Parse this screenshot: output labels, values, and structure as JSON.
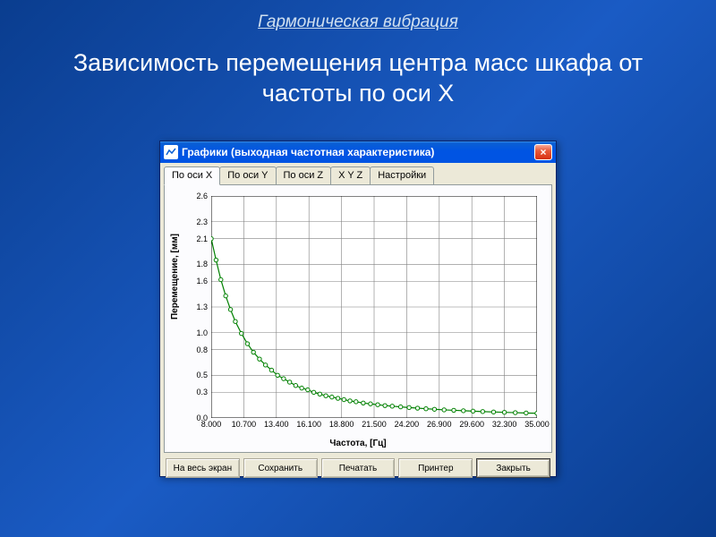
{
  "slide": {
    "header": "Гармоническая вибрация",
    "title": "Зависимость перемещения центра масс шкафа от частоты по оси X"
  },
  "window": {
    "title": "Графики (выходная частотная характеристика)",
    "close_icon": "×",
    "tabs": [
      {
        "label": "По оси X",
        "active": true
      },
      {
        "label": "По оси Y",
        "active": false
      },
      {
        "label": "По оси Z",
        "active": false
      },
      {
        "label": "X Y Z",
        "active": false
      },
      {
        "label": "Настройки",
        "active": false
      }
    ],
    "buttons": {
      "fullscreen": "На весь экран",
      "save": "Сохранить",
      "print": "Печатать",
      "printer": "Принтер",
      "close": "Закрыть"
    }
  },
  "chart": {
    "type": "line",
    "xlabel": "Частота, [Гц]",
    "ylabel": "Перемещение, [мм]",
    "xlim": [
      8.0,
      35.0
    ],
    "ylim": [
      0.0,
      2.6
    ],
    "xticks": [
      8.0,
      10.7,
      13.4,
      16.1,
      18.8,
      21.5,
      24.2,
      26.9,
      29.6,
      32.3,
      35.0
    ],
    "yticks": [
      0.0,
      0.3,
      0.5,
      0.8,
      1.0,
      1.3,
      1.6,
      1.8,
      2.1,
      2.3,
      2.6
    ],
    "grid_color": "#808080",
    "axis_color": "#000000",
    "background_color": "#ffffff",
    "line_color": "#008000",
    "marker_color": "#008000",
    "marker_fill": "#ffffff",
    "marker_radius": 2.2,
    "line_width": 1.2,
    "label_fontsize": 10,
    "tick_fontsize": 9,
    "data": {
      "x": [
        8.0,
        8.4,
        8.8,
        9.2,
        9.6,
        10.0,
        10.5,
        11.0,
        11.5,
        12.0,
        12.5,
        13.0,
        13.5,
        14.0,
        14.5,
        15.0,
        15.5,
        16.0,
        16.5,
        17.0,
        17.5,
        18.0,
        18.5,
        19.0,
        19.5,
        20.0,
        20.6,
        21.2,
        21.8,
        22.4,
        23.0,
        23.7,
        24.4,
        25.1,
        25.8,
        26.5,
        27.3,
        28.1,
        28.9,
        29.7,
        30.5,
        31.4,
        32.3,
        33.2,
        34.1,
        35.0
      ],
      "y": [
        2.1,
        1.85,
        1.62,
        1.43,
        1.27,
        1.13,
        0.99,
        0.87,
        0.77,
        0.69,
        0.62,
        0.56,
        0.5,
        0.46,
        0.42,
        0.38,
        0.35,
        0.33,
        0.3,
        0.28,
        0.26,
        0.245,
        0.23,
        0.215,
        0.2,
        0.19,
        0.175,
        0.165,
        0.155,
        0.145,
        0.138,
        0.13,
        0.122,
        0.115,
        0.108,
        0.102,
        0.095,
        0.09,
        0.085,
        0.08,
        0.075,
        0.07,
        0.066,
        0.062,
        0.058,
        0.055
      ]
    }
  }
}
